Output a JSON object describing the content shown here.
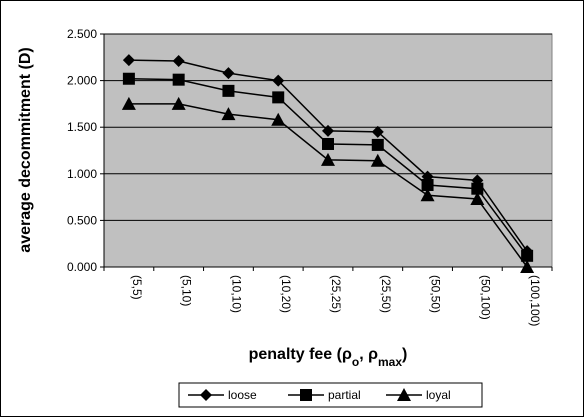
{
  "chart_data": {
    "type": "line",
    "title": "",
    "xlabel_main": "penalty fee (ρ",
    "xlabel_sub1": "o",
    "xlabel_mid": ", ρ",
    "xlabel_sub2": "max",
    "xlabel_end": ")",
    "ylabel": "average decommitment (D)",
    "categories": [
      "(5,5)",
      "(5,10)",
      "(10,10)",
      "(10,20)",
      "(25,25)",
      "(25,50)",
      "(50,50)",
      "(50,100)",
      "(100,100)"
    ],
    "yticks": [
      "0.000",
      "0.500",
      "1.000",
      "1.500",
      "2.000",
      "2.500"
    ],
    "ylim": [
      0,
      2.5
    ],
    "grid": true,
    "legend_position": "bottom",
    "plot_background": "#c0c0c0",
    "series": [
      {
        "name": "loose",
        "marker": "diamond",
        "values": [
          2.22,
          2.21,
          2.08,
          2.0,
          1.46,
          1.45,
          0.97,
          0.93,
          0.17
        ]
      },
      {
        "name": "partial",
        "marker": "square",
        "values": [
          2.02,
          2.01,
          1.89,
          1.82,
          1.32,
          1.31,
          0.88,
          0.84,
          0.12
        ]
      },
      {
        "name": "loyal",
        "marker": "triangle",
        "values": [
          1.75,
          1.75,
          1.64,
          1.58,
          1.15,
          1.14,
          0.77,
          0.73,
          0.0
        ]
      }
    ]
  }
}
